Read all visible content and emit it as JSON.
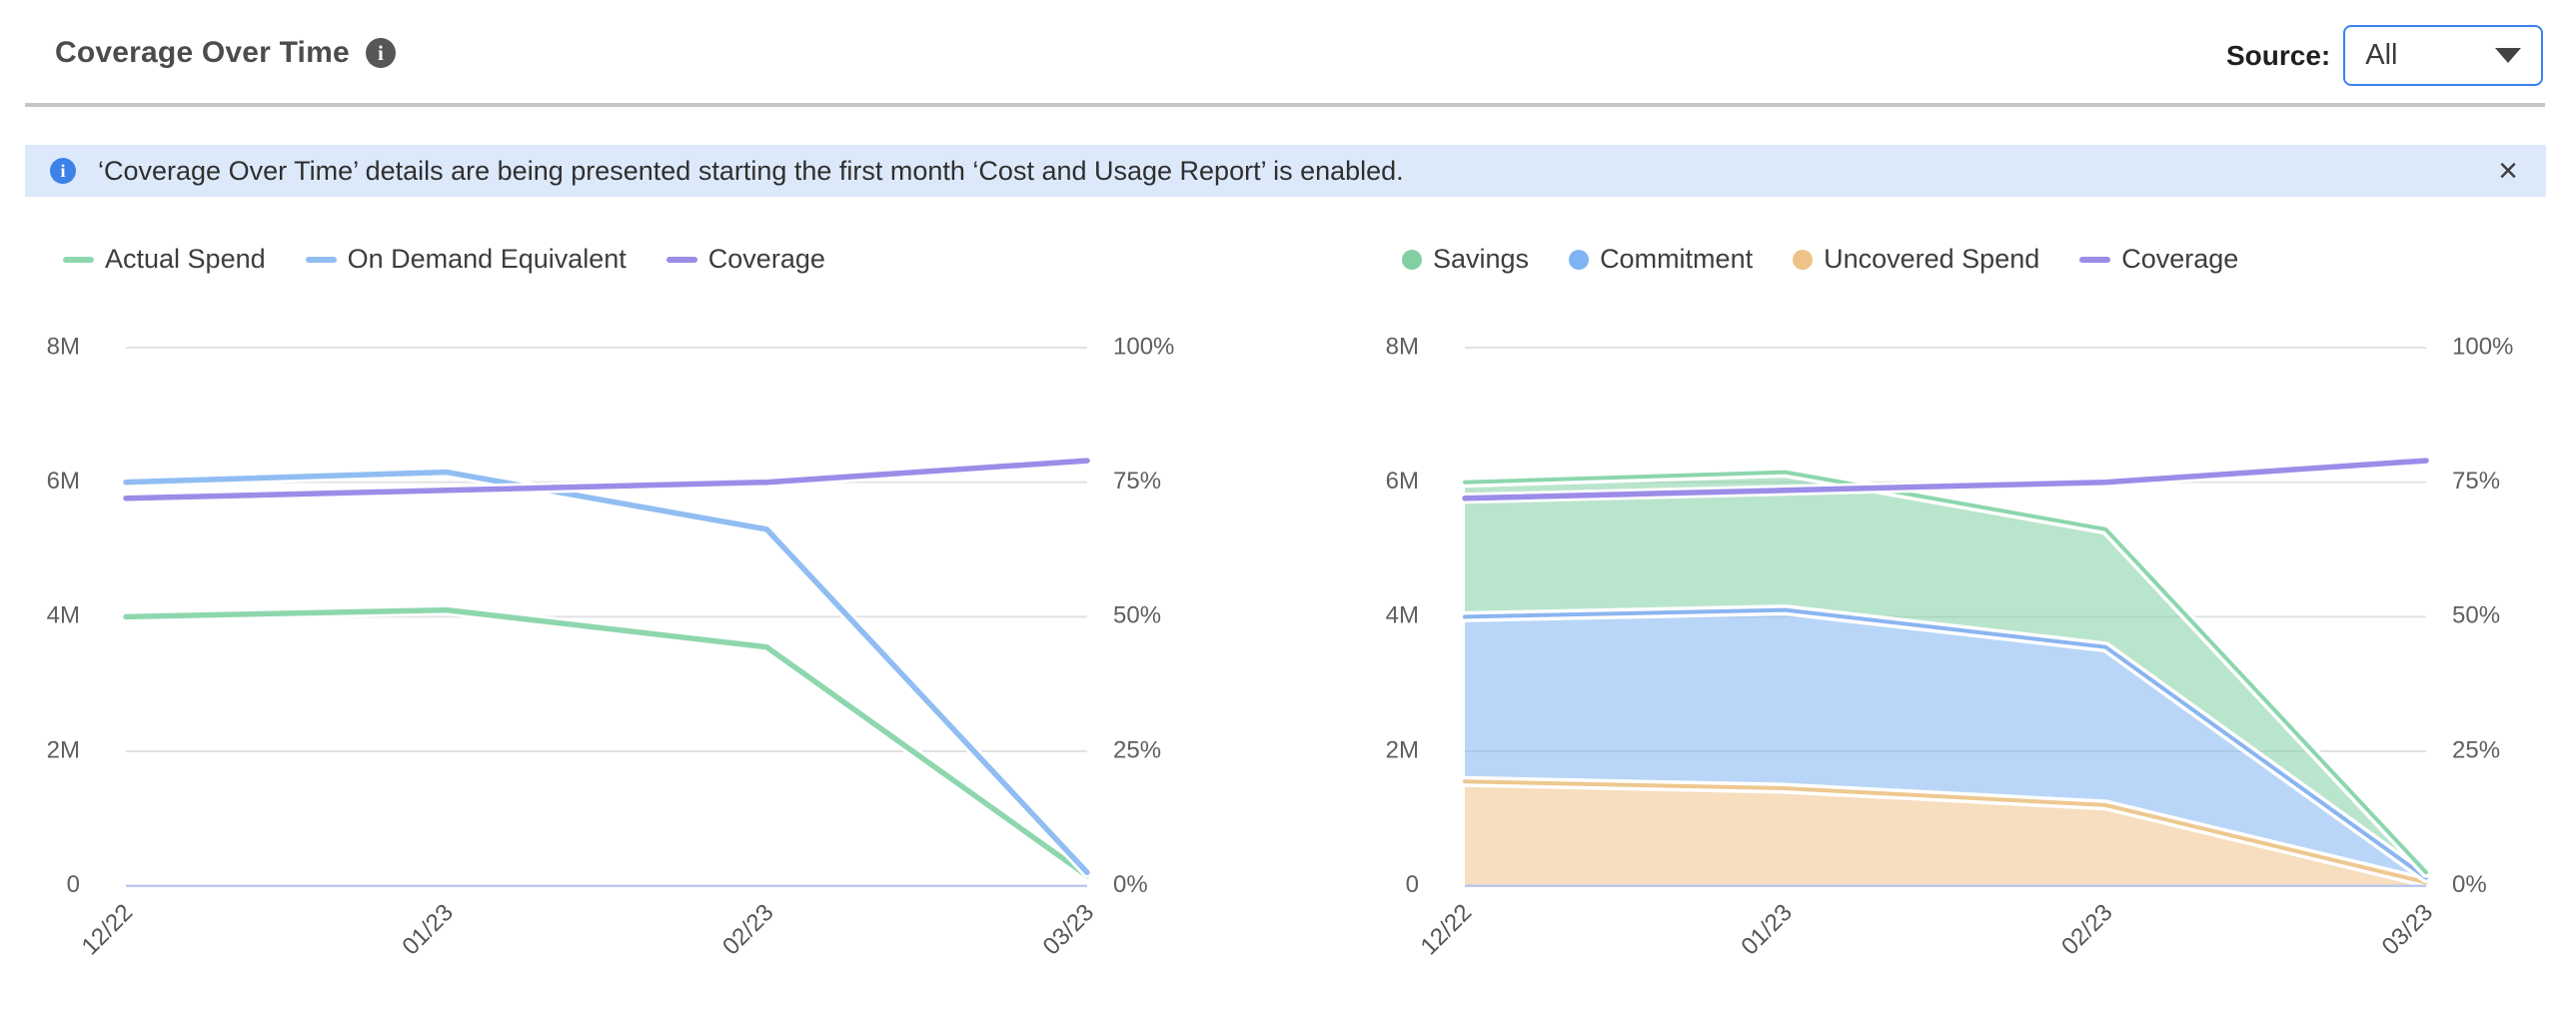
{
  "header": {
    "title": "Coverage Over Time",
    "info_icon_glyph": "i",
    "source_label": "Source:",
    "source_value": "All"
  },
  "banner": {
    "icon_glyph": "i",
    "text": "‘Coverage Over Time’ details are being presented starting the first month ‘Cost and Usage Report’ is enabled.",
    "close_glyph": "×"
  },
  "colors": {
    "accent_blue": "#3b82f0",
    "banner_bg": "#dce9fb",
    "divider": "#c6c6c6",
    "gridline": "#e2e2e2",
    "zero_axis": "#bcc8ee",
    "series_green": "#8ed7ae",
    "series_blue": "#90bdf2",
    "series_purple": "#9b8ce8",
    "series_orange": "#eec388"
  },
  "chart_data": [
    {
      "type": "line",
      "name": "spend-vs-on-demand",
      "x_labels": [
        "12/22",
        "01/23",
        "02/23",
        "03/23"
      ],
      "y_left": {
        "ticks": [
          "8M",
          "6M",
          "4M",
          "2M",
          "0"
        ],
        "unit": "millions",
        "lim": [
          0,
          8
        ]
      },
      "y_right": {
        "ticks": [
          "100%",
          "75%",
          "50%",
          "25%",
          "0%"
        ],
        "unit": "percent",
        "lim": [
          0,
          100
        ]
      },
      "grid": true,
      "legend_position": "top-left",
      "series": [
        {
          "name": "Actual Spend",
          "marker": "line",
          "axis": "left",
          "unit": "M",
          "color": "#8ed7ae",
          "values": [
            4.0,
            4.1,
            3.55,
            0.15
          ]
        },
        {
          "name": "On Demand Equivalent",
          "marker": "line",
          "axis": "left",
          "unit": "M",
          "color": "#90bdf2",
          "values": [
            6.0,
            6.15,
            5.3,
            0.2
          ]
        },
        {
          "name": "Coverage",
          "marker": "line",
          "axis": "right",
          "unit": "%",
          "color": "#9b8ce8",
          "values": [
            72,
            73.5,
            75,
            79
          ]
        }
      ]
    },
    {
      "type": "stacked-area",
      "name": "coverage-breakdown",
      "x_labels": [
        "12/22",
        "01/23",
        "02/23",
        "03/23"
      ],
      "y_left": {
        "ticks": [
          "8M",
          "6M",
          "4M",
          "2M",
          "0"
        ],
        "unit": "millions",
        "lim": [
          0,
          8
        ]
      },
      "y_right": {
        "ticks": [
          "100%",
          "75%",
          "50%",
          "25%",
          "0%"
        ],
        "unit": "percent",
        "lim": [
          0,
          100
        ]
      },
      "grid": true,
      "legend_position": "top-left",
      "series": [
        {
          "name": "Savings",
          "marker": "circle",
          "axis": "left",
          "unit": "M",
          "color": "#82cfa4",
          "fill": "rgba(130,207,164,0.55)",
          "stroke": "#8cd6ad",
          "stack_index": 2,
          "values": [
            2.0,
            2.05,
            1.75,
            0.08
          ]
        },
        {
          "name": "Commitment",
          "marker": "circle",
          "axis": "left",
          "unit": "M",
          "color": "#7fb4f2",
          "fill": "rgba(127,180,242,0.55)",
          "stroke": "#8ab5f0",
          "stack_index": 1,
          "values": [
            2.45,
            2.65,
            2.35,
            0.07
          ]
        },
        {
          "name": "Uncovered Spend",
          "marker": "circle",
          "axis": "left",
          "unit": "M",
          "color": "#eec388",
          "fill": "rgba(238,195,136,0.55)",
          "stroke": "#edc88f",
          "stack_index": 0,
          "values": [
            1.55,
            1.45,
            1.2,
            0.05
          ]
        },
        {
          "name": "Coverage",
          "marker": "line",
          "axis": "right",
          "unit": "%",
          "color": "#9b8ce8",
          "values": [
            72,
            73.5,
            75,
            79
          ]
        }
      ]
    }
  ]
}
